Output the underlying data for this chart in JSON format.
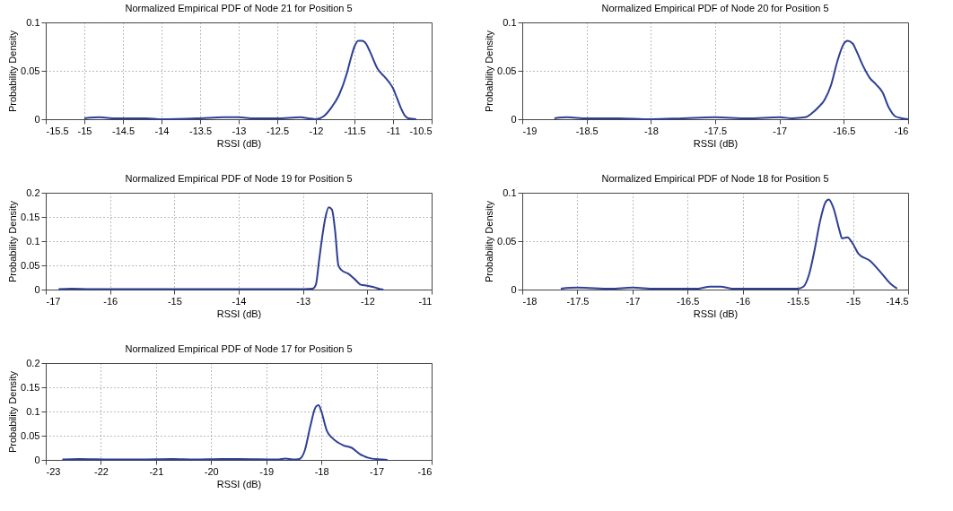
{
  "chart_data": [
    {
      "type": "line",
      "title": "Normalized Empirical PDF of Node 21 for Position 5",
      "xlabel": "RSSI (dB)",
      "ylabel": "Probability Density",
      "xlim": [
        -15.5,
        -10.5
      ],
      "xticks": [
        -15.5,
        -15,
        -14.5,
        -14,
        -13.5,
        -13,
        -12.5,
        -12,
        -11.5,
        -11,
        -10.5
      ],
      "ylim": [
        0,
        0.1
      ],
      "yticks": [
        0,
        0.05,
        0.1
      ],
      "grid": true,
      "color": "#2e3f95",
      "x": [
        -15,
        -14.8,
        -14.6,
        -14.2,
        -14,
        -13.5,
        -13.2,
        -13,
        -12.8,
        -12.5,
        -12.2,
        -12.1,
        -12,
        -11.9,
        -11.8,
        -11.7,
        -11.6,
        -11.55,
        -11.5,
        -11.45,
        -11.4,
        -11.35,
        -11.3,
        -11.2,
        -11.1,
        -11.05,
        -11,
        -10.95,
        -10.9,
        -10.85,
        -10.8,
        -10.7
      ],
      "values": [
        0.001,
        0.002,
        0.001,
        0.001,
        0,
        0.001,
        0.002,
        0.002,
        0.001,
        0.001,
        0.002,
        0.001,
        0,
        0.003,
        0.012,
        0.025,
        0.047,
        0.062,
        0.075,
        0.081,
        0.081,
        0.078,
        0.07,
        0.052,
        0.043,
        0.038,
        0.032,
        0.022,
        0.012,
        0.004,
        0.001,
        0
      ]
    },
    {
      "type": "line",
      "title": "Normalized Empirical PDF of Node 20 for Position 5",
      "xlabel": "RSSI (dB)",
      "ylabel": "Probability Density",
      "xlim": [
        -19,
        -16
      ],
      "xticks": [
        -19,
        -18.5,
        -18,
        -17.5,
        -17,
        -16.5,
        -16
      ],
      "ylim": [
        0,
        0.1
      ],
      "yticks": [
        0,
        0.05,
        0.1
      ],
      "grid": true,
      "color": "#2e3f95",
      "x": [
        -18.75,
        -18.65,
        -18.5,
        -18.25,
        -18,
        -17.75,
        -17.5,
        -17.25,
        -17,
        -16.9,
        -16.8,
        -16.75,
        -16.7,
        -16.65,
        -16.6,
        -16.55,
        -16.5,
        -16.47,
        -16.43,
        -16.4,
        -16.35,
        -16.3,
        -16.25,
        -16.2,
        -16.15,
        -16.1,
        -16.05,
        -16
      ],
      "values": [
        0.001,
        0.002,
        0.001,
        0.001,
        0,
        0.001,
        0.002,
        0.001,
        0.002,
        0.001,
        0.002,
        0.006,
        0.012,
        0.02,
        0.035,
        0.06,
        0.078,
        0.081,
        0.078,
        0.07,
        0.055,
        0.043,
        0.036,
        0.028,
        0.012,
        0.003,
        0.001,
        0
      ]
    },
    {
      "type": "line",
      "title": "Normalized Empirical PDF of Node 19 for Position 5",
      "xlabel": "RSSI (dB)",
      "ylabel": "Probability Density",
      "xlim": [
        -17,
        -11
      ],
      "xticks": [
        -17,
        -16,
        -15,
        -14,
        -13,
        -12,
        -11
      ],
      "ylim": [
        0,
        0.2
      ],
      "yticks": [
        0,
        0.05,
        0.1,
        0.15,
        0.2
      ],
      "grid": true,
      "color": "#2e3f95",
      "x": [
        -16.8,
        -16.6,
        -16.3,
        -15.3,
        -14.6,
        -14.2,
        -13.5,
        -13.1,
        -12.85,
        -12.8,
        -12.75,
        -12.7,
        -12.65,
        -12.6,
        -12.55,
        -12.5,
        -12.45,
        -12.4,
        -12.3,
        -12.2,
        -12.1,
        -12,
        -11.9,
        -11.8,
        -11.75
      ],
      "values": [
        0.001,
        0.002,
        0.001,
        0.001,
        0.001,
        0.001,
        0.001,
        0.001,
        0.002,
        0.01,
        0.06,
        0.11,
        0.15,
        0.17,
        0.165,
        0.12,
        0.05,
        0.04,
        0.033,
        0.022,
        0.01,
        0.008,
        0.005,
        0.001,
        0
      ]
    },
    {
      "type": "line",
      "title": "Normalized Empirical PDF of Node 18 for Position 5",
      "xlabel": "RSSI (dB)",
      "ylabel": "Probability Density",
      "xlim": [
        -18,
        -14.5
      ],
      "xticks": [
        -18,
        -17.5,
        -17,
        -16.5,
        -16,
        -15.5,
        -15,
        -14.5
      ],
      "ylim": [
        0,
        0.1
      ],
      "yticks": [
        0,
        0.05,
        0.1
      ],
      "grid": true,
      "color": "#2e3f95",
      "x": [
        -17.65,
        -17.5,
        -17.2,
        -17,
        -16.8,
        -16.4,
        -16.3,
        -16.2,
        -16.1,
        -15.5,
        -15.45,
        -15.4,
        -15.35,
        -15.3,
        -15.25,
        -15.22,
        -15.18,
        -15.12,
        -15.1,
        -15.05,
        -15,
        -14.95,
        -14.85,
        -14.75,
        -14.65,
        -14.6
      ],
      "values": [
        0.001,
        0.002,
        0.001,
        0.002,
        0.001,
        0.001,
        0.003,
        0.003,
        0.001,
        0.001,
        0.003,
        0.015,
        0.04,
        0.07,
        0.09,
        0.093,
        0.085,
        0.06,
        0.053,
        0.054,
        0.047,
        0.037,
        0.03,
        0.018,
        0.005,
        0.001
      ]
    },
    {
      "type": "line",
      "title": "Normalized Empirical PDF of Node 17 for Position 5",
      "xlabel": "RSSI (dB)",
      "ylabel": "Probability Density",
      "xlim": [
        -23,
        -16
      ],
      "xticks": [
        -23,
        -22,
        -21,
        -20,
        -19,
        -18,
        -17,
        -16
      ],
      "ylim": [
        0,
        0.2
      ],
      "yticks": [
        0,
        0.05,
        0.1,
        0.15,
        0.2
      ],
      "grid": true,
      "color": "#2e3f95",
      "x": [
        -22.7,
        -22.4,
        -21.8,
        -21.3,
        -20.7,
        -20.3,
        -19.8,
        -19.5,
        -18.8,
        -18.65,
        -18.5,
        -18.4,
        -18.3,
        -18.2,
        -18.1,
        -18.05,
        -18,
        -17.9,
        -17.8,
        -17.6,
        -17.45,
        -17.3,
        -17.1,
        -16.9,
        -16.8
      ],
      "values": [
        0.001,
        0.002,
        0.001,
        0.001,
        0.002,
        0.001,
        0.002,
        0.002,
        0.001,
        0.003,
        0.001,
        0.002,
        0.02,
        0.07,
        0.11,
        0.113,
        0.1,
        0.06,
        0.045,
        0.03,
        0.025,
        0.012,
        0.003,
        0.001,
        0
      ]
    }
  ]
}
